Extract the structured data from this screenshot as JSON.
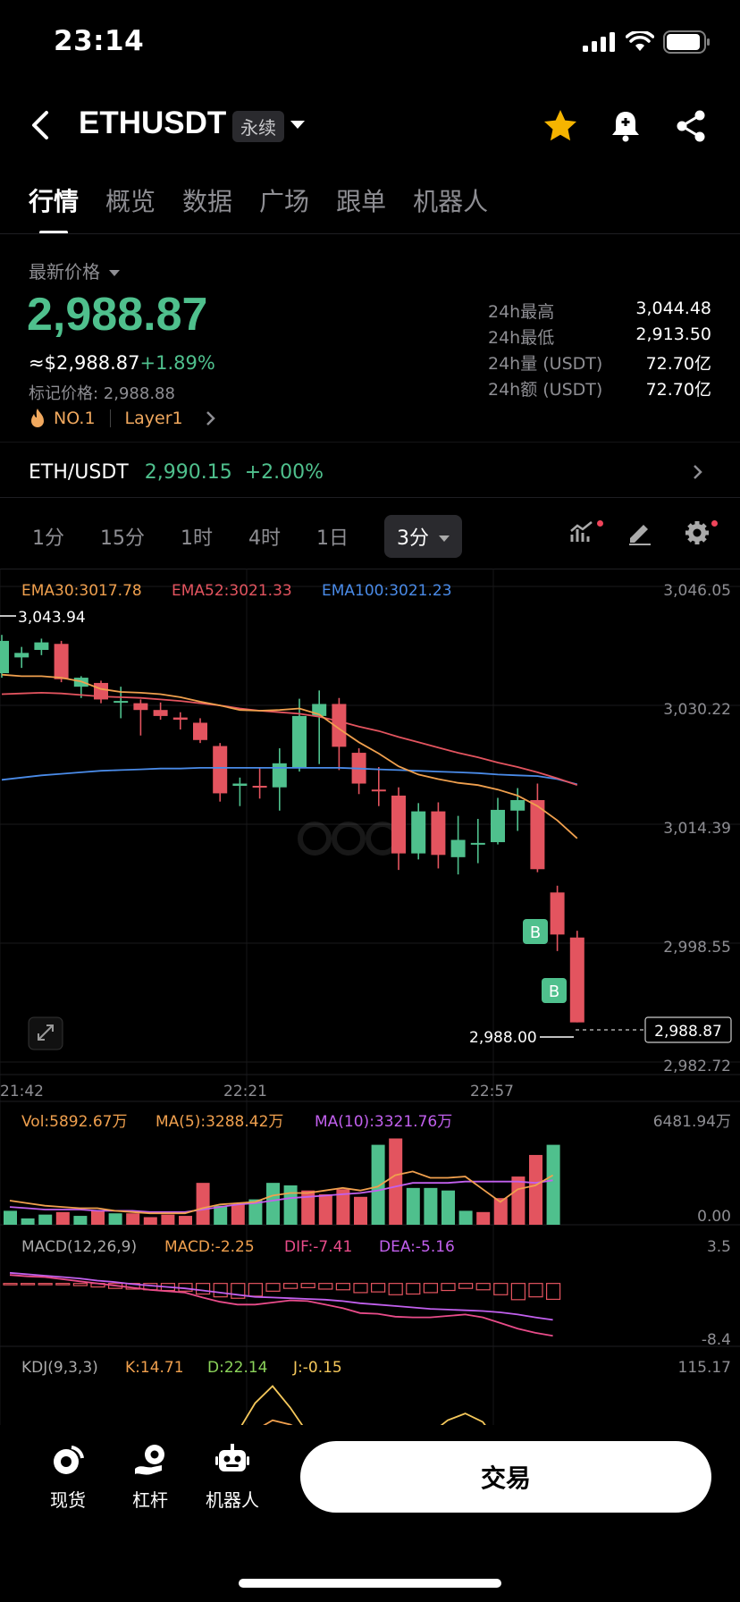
{
  "status": {
    "time": "23:14"
  },
  "header": {
    "pair": "ETHUSDT",
    "badge": "永续"
  },
  "tabs": [
    "行情",
    "概览",
    "数据",
    "广场",
    "跟单",
    "机器人"
  ],
  "price": {
    "label": "最新价格",
    "last": "2,988.87",
    "approx": "≈$2,988.87",
    "change": "+1.89%",
    "mark": "标记价格: 2,988.88",
    "rank": "NO.1",
    "tag": "Layer1"
  },
  "stats": [
    {
      "k": "24h最高",
      "v": "3,044.48"
    },
    {
      "k": "24h最低",
      "v": "2,913.50"
    },
    {
      "k": "24h量 (USDT)",
      "v": "72.70亿"
    },
    {
      "k": "24h额 (USDT)",
      "v": "72.70亿"
    }
  ],
  "spot": {
    "pair": "ETH/USDT",
    "price": "2,990.15",
    "change": "+2.00%"
  },
  "intervals": [
    "1分",
    "15分",
    "1时",
    "4时",
    "1日"
  ],
  "active_interval": "3分",
  "colors": {
    "up": "#4fc08d",
    "down": "#e3545f",
    "ema30": "#f0a04e",
    "ema52": "#e3545f",
    "ema100": "#4a8be8",
    "ma10": "#c260ee"
  },
  "chart": {
    "ema30": "EMA30:3017.78",
    "ema52": "EMA52:3021.33",
    "ema100": "EMA100:3021.23",
    "price_ticks": [
      "3,046.05",
      "3,030.22",
      "3,014.39",
      "2,998.55",
      "2,982.72"
    ],
    "high_mark": "3,043.94",
    "low_mark": "2,988.00",
    "current": "2,988.87",
    "time_ticks": [
      "21:42",
      "22:21",
      "22:57"
    ],
    "buy_marker": "B",
    "vol": "Vol:5892.67万",
    "ma5": "MA(5):3288.42万",
    "ma10": "MA(10):3321.76万",
    "vol_max": "6481.94万",
    "vol_min": "0.00",
    "macd_title": "MACD(12,26,9)",
    "macd": "MACD:-2.25",
    "dif": "DIF:-7.41",
    "dea": "DEA:-5.16",
    "macd_max": "3.5",
    "macd_min": "-8.4",
    "kdj_title": "KDJ(9,3,3)",
    "k": "K:14.71",
    "d": "D:22.14",
    "j": "J:-0.15",
    "kdj_max": "115.17"
  },
  "chart_data": {
    "type": "candlestick",
    "ylim": [
      2982.72,
      3046.05
    ],
    "candles": [
      {
        "o": 3034.5,
        "c": 3038.8,
        "h": 3039.6,
        "l": 3033.9
      },
      {
        "o": 3036.6,
        "c": 3037.2,
        "h": 3038.0,
        "l": 3035.2
      },
      {
        "o": 3037.6,
        "c": 3038.6,
        "h": 3039.1,
        "l": 3036.9
      },
      {
        "o": 3038.4,
        "c": 3033.7,
        "h": 3038.8,
        "l": 3033.3
      },
      {
        "o": 3032.7,
        "c": 3033.9,
        "h": 3034.1,
        "l": 3031.2
      },
      {
        "o": 3033.2,
        "c": 3031.0,
        "h": 3033.5,
        "l": 3030.5
      },
      {
        "o": 3030.6,
        "c": 3030.8,
        "h": 3032.7,
        "l": 3028.5
      },
      {
        "o": 3030.5,
        "c": 3029.6,
        "h": 3031.0,
        "l": 3026.2
      },
      {
        "o": 3029.6,
        "c": 3028.8,
        "h": 3030.6,
        "l": 3028.3
      },
      {
        "o": 3028.6,
        "c": 3028.3,
        "h": 3029.3,
        "l": 3027.0
      },
      {
        "o": 3027.9,
        "c": 3025.6,
        "h": 3028.5,
        "l": 3025.2
      },
      {
        "o": 3024.8,
        "c": 3018.5,
        "h": 3025.2,
        "l": 3017.4
      },
      {
        "o": 3019.5,
        "c": 3019.8,
        "h": 3020.6,
        "l": 3016.8
      },
      {
        "o": 3019.5,
        "c": 3019.3,
        "h": 3021.9,
        "l": 3017.8
      },
      {
        "o": 3019.3,
        "c": 3022.5,
        "h": 3024.5,
        "l": 3016.2
      },
      {
        "o": 3021.9,
        "c": 3028.8,
        "h": 3031.1,
        "l": 3021.4
      },
      {
        "o": 3028.8,
        "c": 3030.4,
        "h": 3032.2,
        "l": 3022.4
      },
      {
        "o": 3030.4,
        "c": 3024.7,
        "h": 3031.2,
        "l": 3021.6
      },
      {
        "o": 3023.9,
        "c": 3019.8,
        "h": 3024.5,
        "l": 3018.4
      },
      {
        "o": 3019.0,
        "c": 3018.8,
        "h": 3022.0,
        "l": 3016.8
      },
      {
        "o": 3018.2,
        "c": 3010.5,
        "h": 3019.3,
        "l": 3008.3
      },
      {
        "o": 3010.5,
        "c": 3016.1,
        "h": 3017.2,
        "l": 3009.7
      },
      {
        "o": 3016.1,
        "c": 3010.3,
        "h": 3017.3,
        "l": 3008.5
      },
      {
        "o": 3010.0,
        "c": 3012.3,
        "h": 3015.5,
        "l": 3007.7
      },
      {
        "o": 3011.9,
        "c": 3011.9,
        "h": 3015.1,
        "l": 3009.2
      },
      {
        "o": 3012.0,
        "c": 3016.3,
        "h": 3017.9,
        "l": 3011.7
      },
      {
        "o": 3016.2,
        "c": 3017.6,
        "h": 3019.2,
        "l": 3013.5
      },
      {
        "o": 3017.6,
        "c": 3008.4,
        "h": 3019.8,
        "l": 3008.0
      },
      {
        "o": 3005.3,
        "c": 2999.7,
        "h": 3006.2,
        "l": 2997.5
      },
      {
        "o": 2999.3,
        "c": 2988.0,
        "h": 3000.2,
        "l": 2988.0
      }
    ],
    "ema30": [
      3034.3,
      3034.1,
      3034.1,
      3033.9,
      3033.4,
      3032.4,
      3032.0,
      3031.9,
      3031.7,
      3031.3,
      3030.7,
      3030.2,
      3029.6,
      3029.5,
      3029.6,
      3029.8,
      3029.0,
      3027.1,
      3025.3,
      3023.8,
      3022.1,
      3021.0,
      3020.4,
      3019.9,
      3019.6,
      3019.0,
      3018.2,
      3016.8,
      3014.9,
      3012.5
    ],
    "ema52": [
      3031.7,
      3031.8,
      3031.9,
      3031.8,
      3031.6,
      3031.4,
      3031.3,
      3031.2,
      3031.0,
      3030.8,
      3030.5,
      3030.2,
      3029.8,
      3029.5,
      3029.3,
      3029.1,
      3028.7,
      3028.1,
      3027.4,
      3026.8,
      3026.0,
      3025.3,
      3024.6,
      3023.9,
      3023.3,
      3022.6,
      3022.0,
      3021.3,
      3020.5,
      3019.6
    ],
    "ema100": [
      3020.3,
      3020.6,
      3020.9,
      3021.1,
      3021.3,
      3021.5,
      3021.6,
      3021.7,
      3021.8,
      3021.8,
      3021.9,
      3021.9,
      3021.9,
      3021.9,
      3021.9,
      3021.9,
      3021.9,
      3021.9,
      3021.8,
      3021.7,
      3021.6,
      3021.5,
      3021.4,
      3021.3,
      3021.2,
      3021.0,
      3020.9,
      3020.8,
      3020.4,
      3019.7
    ],
    "volume": {
      "max": 6481.94,
      "values": [
        1100,
        500,
        800,
        1000,
        700,
        1100,
        900,
        900,
        600,
        800,
        700,
        3300,
        1500,
        1600,
        2000,
        3300,
        3100,
        2700,
        2400,
        2800,
        2200,
        6300,
        6800,
        2900,
        2900,
        2700,
        1100,
        1000,
        2100,
        3800,
        5500,
        6300
      ]
    },
    "ma5": [
      1900,
      1700,
      1500,
      1400,
      1300,
      1300,
      1100,
      1000,
      900,
      900,
      900,
      1300,
      1600,
      1700,
      1800,
      2300,
      2500,
      2500,
      2700,
      2900,
      2700,
      3000,
      3900,
      4200,
      3700,
      3700,
      3800,
      2800,
      1800,
      2800,
      3100,
      3900
    ],
    "ma10": [
      1400,
      1300,
      1200,
      1200,
      1200,
      1100,
      1100,
      1100,
      1000,
      1000,
      1000,
      1200,
      1400,
      1600,
      1700,
      1900,
      2100,
      2200,
      2300,
      2400,
      2500,
      2700,
      3000,
      3300,
      3300,
      3300,
      3400,
      3400,
      3400,
      3400,
      3300,
      3500
    ],
    "macd": {
      "ylim": [
        -8.4,
        3.5
      ],
      "hist": [
        -0.2,
        -0.1,
        -0.1,
        -0.2,
        -0.3,
        -0.5,
        -0.7,
        -0.8,
        -0.9,
        -1.0,
        -1.1,
        -1.5,
        -1.9,
        -2.1,
        -1.8,
        -1.1,
        -0.7,
        -0.6,
        -0.8,
        -0.9,
        -1.3,
        -1.2,
        -1.6,
        -1.5,
        -1.3,
        -1.0,
        -0.7,
        -0.9,
        -1.6,
        -2.3,
        -1.9,
        -2.25
      ],
      "dif": [
        1.2,
        1.0,
        0.9,
        0.6,
        0.3,
        0.0,
        -0.3,
        -0.6,
        -0.9,
        -1.1,
        -1.3,
        -2.0,
        -2.6,
        -3.0,
        -3.0,
        -2.7,
        -2.4,
        -2.5,
        -3.0,
        -3.5,
        -4.2,
        -4.3,
        -4.7,
        -4.8,
        -4.8,
        -4.6,
        -4.4,
        -4.8,
        -5.6,
        -6.4,
        -7.0,
        -7.41
      ],
      "dea": [
        1.5,
        1.3,
        1.1,
        0.9,
        0.7,
        0.4,
        0.2,
        -0.1,
        -0.3,
        -0.5,
        -0.7,
        -1.0,
        -1.3,
        -1.6,
        -1.9,
        -2.0,
        -2.1,
        -2.2,
        -2.3,
        -2.5,
        -2.8,
        -3.0,
        -3.2,
        -3.4,
        -3.6,
        -3.7,
        -3.8,
        -3.9,
        -4.1,
        -4.4,
        -4.8,
        -5.16
      ]
    },
    "kdj": {
      "ylim": [
        0,
        115.17
      ],
      "k": [
        40,
        38,
        35,
        30,
        22,
        16,
        14,
        12,
        12,
        13,
        14,
        15,
        20,
        30,
        48,
        60,
        55,
        45,
        40,
        38,
        30,
        28,
        30,
        34,
        38,
        45,
        50,
        48,
        38,
        26,
        18,
        14.71
      ],
      "d": [
        45,
        44,
        43,
        40,
        34,
        28,
        24,
        20,
        18,
        16,
        15,
        15,
        17,
        22,
        30,
        40,
        46,
        47,
        45,
        42,
        38,
        35,
        34,
        34,
        35,
        38,
        42,
        44,
        42,
        36,
        28,
        22.14
      ],
      "j": [
        30,
        28,
        20,
        10,
        0,
        -8,
        -10,
        -12,
        -10,
        -6,
        -2,
        8,
        26,
        46,
        80,
        100,
        75,
        45,
        30,
        30,
        15,
        14,
        22,
        34,
        44,
        60,
        68,
        58,
        30,
        8,
        -4,
        -0.15
      ]
    }
  },
  "nav": [
    {
      "label": "现货"
    },
    {
      "label": "杠杆"
    },
    {
      "label": "机器人"
    }
  ],
  "trade_btn": "交易"
}
